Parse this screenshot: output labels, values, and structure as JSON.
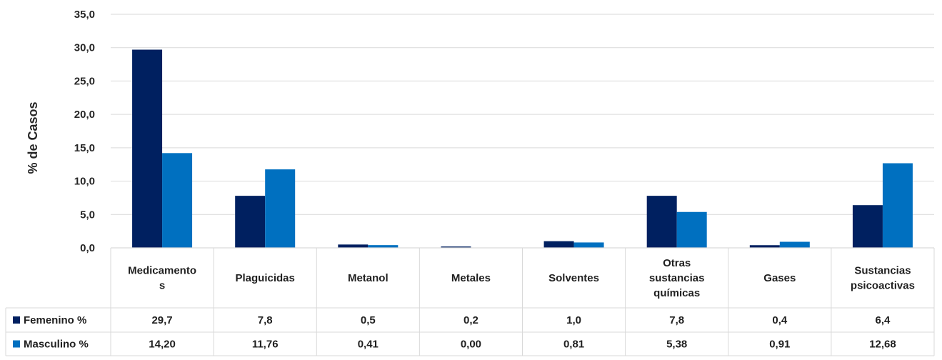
{
  "chart_data": {
    "type": "bar",
    "ylabel": "% de Casos",
    "ylim": [
      0,
      35
    ],
    "yticks": [
      "0,0",
      "5,0",
      "10,0",
      "15,0",
      "20,0",
      "25,0",
      "30,0",
      "35,0"
    ],
    "grid": true,
    "legend": "data-table",
    "categories": [
      [
        "Medicamento",
        "s"
      ],
      [
        "Plaguicidas"
      ],
      [
        "Metanol"
      ],
      [
        "Metales"
      ],
      [
        "Solventes"
      ],
      [
        "Otras",
        "sustancias",
        "químicas"
      ],
      [
        "Gases"
      ],
      [
        "Sustancias",
        "psicoactivas"
      ]
    ],
    "series": [
      {
        "name": "Femenino %",
        "color": "#002060",
        "values": [
          29.7,
          7.8,
          0.5,
          0.2,
          1.0,
          7.8,
          0.4,
          6.4
        ],
        "labels": [
          "29,7",
          "7,8",
          "0,5",
          "0,2",
          "1,0",
          "7,8",
          "0,4",
          "6,4"
        ]
      },
      {
        "name": "Masculino %",
        "color": "#0070C0",
        "values": [
          14.2,
          11.76,
          0.41,
          0.0,
          0.81,
          5.38,
          0.91,
          12.68
        ],
        "labels": [
          "14,20",
          "11,76",
          "0,41",
          "0,00",
          "0,81",
          "5,38",
          "0,91",
          "12,68"
        ]
      }
    ]
  }
}
